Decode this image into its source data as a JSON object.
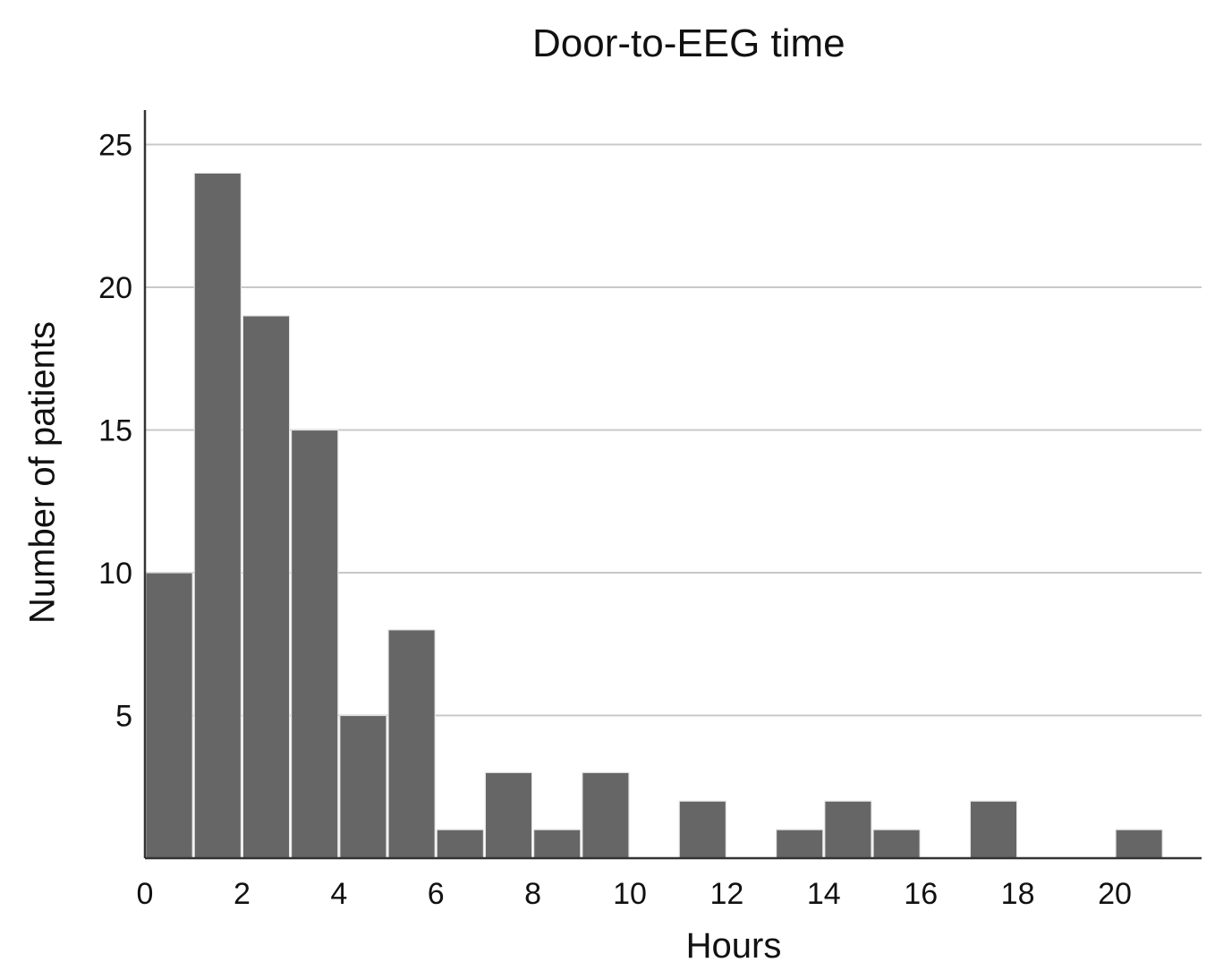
{
  "chart_data": {
    "type": "bar",
    "title": "Door-to-EEG time",
    "xlabel": "Hours",
    "ylabel": "Number of patients",
    "bin_width": 1,
    "x": [
      0,
      1,
      2,
      3,
      4,
      5,
      6,
      7,
      8,
      9,
      10,
      11,
      12,
      13,
      14,
      15,
      16,
      17,
      18,
      19,
      20
    ],
    "values": [
      10,
      24,
      19,
      15,
      5,
      8,
      1,
      3,
      1,
      3,
      0,
      2,
      0,
      1,
      2,
      1,
      0,
      2,
      0,
      0,
      1
    ],
    "xlim": [
      0,
      21.7
    ],
    "ylim": [
      0,
      26.2
    ],
    "xticks": [
      "0",
      "2",
      "4",
      "6",
      "8",
      "10",
      "12",
      "14",
      "16",
      "18",
      "20"
    ],
    "yticks": [
      "5",
      "10",
      "15",
      "20",
      "25"
    ],
    "grid": true,
    "bar_color": "#666666",
    "grid_color": "#c8c8c8",
    "axis_color": "#333333"
  }
}
